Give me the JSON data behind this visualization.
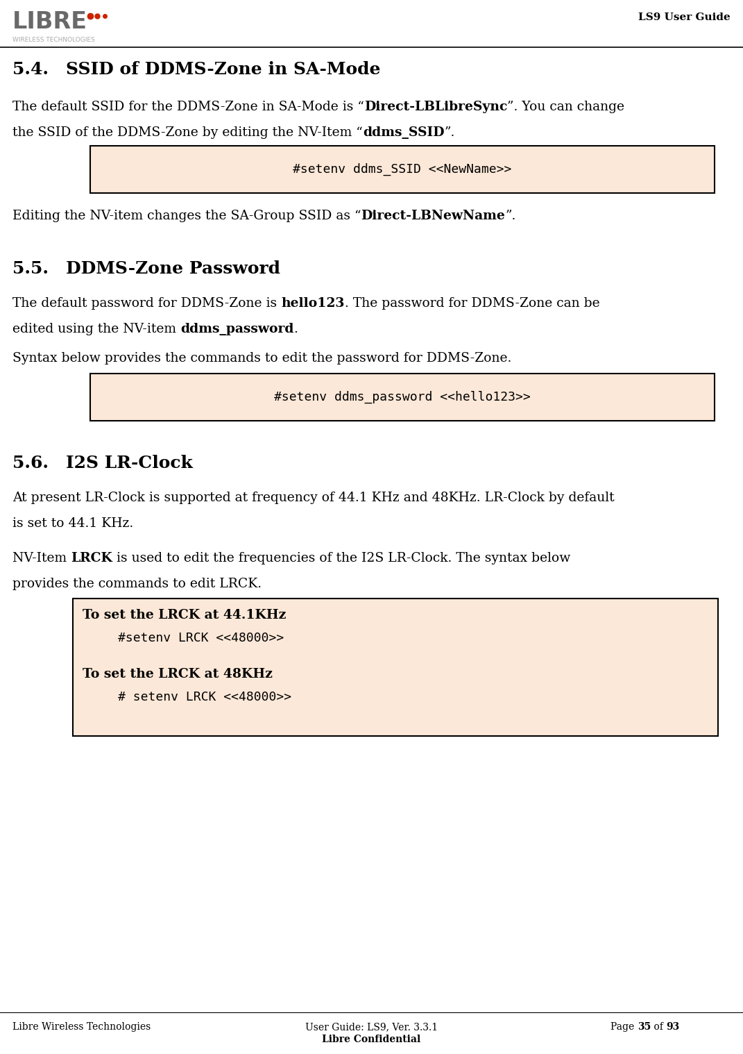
{
  "bg_color": "#ffffff",
  "header_right_text": "LS9 User Guide",
  "footer_left": "Libre Wireless Technologies",
  "footer_center1": "User Guide: LS9, Ver. 3.3.1",
  "footer_center2": "Libre Confidential",
  "footer_right_pre": "Page ",
  "footer_right_bold": "35",
  "footer_right_mid": " of ",
  "footer_right_bold2": "93",
  "box1_bg": "#fce8d8",
  "box2_bg": "#fce8d8",
  "box3_bg": "#fce8d8",
  "box_border": "#000000",
  "text_color": "#000000"
}
